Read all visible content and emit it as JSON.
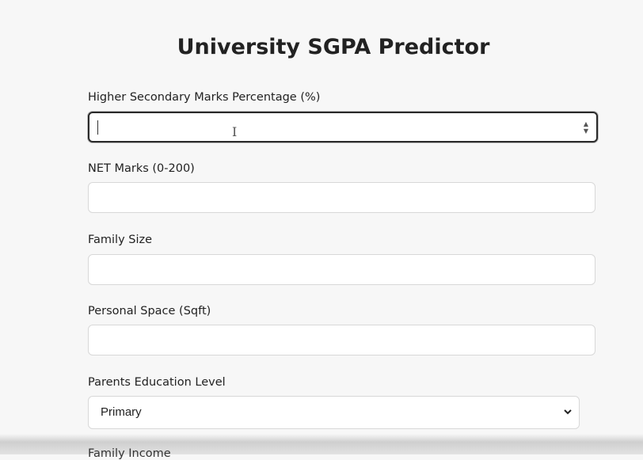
{
  "form": {
    "title": "University SGPA Predictor",
    "fields": [
      {
        "label": "Higher Secondary Marks Percentage (%)"
      },
      {
        "label": "NET Marks (0-200)"
      },
      {
        "label": "Family Size"
      },
      {
        "label": "Personal Space (Sqft)"
      },
      {
        "label": "Parents Education Level",
        "selected": "Primary"
      },
      {
        "label": "Family Income"
      }
    ]
  }
}
